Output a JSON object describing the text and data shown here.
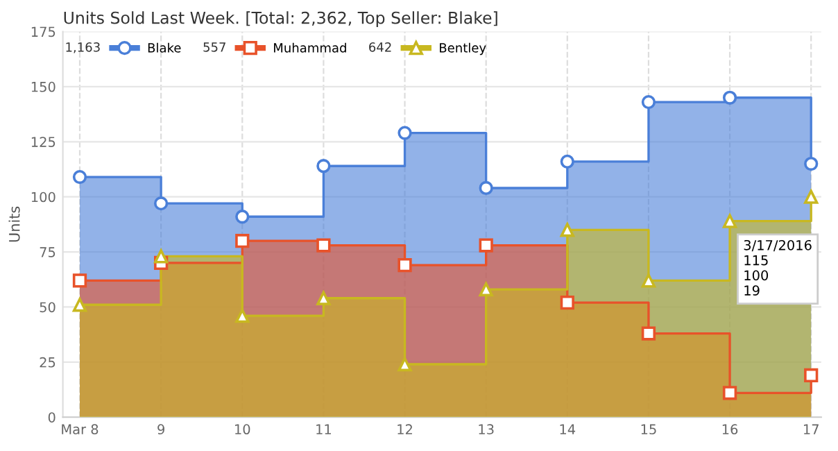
{
  "chart_data": {
    "type": "area",
    "title": "Units Sold Last Week. [Total: 2,362, Top Seller: Blake]",
    "ylabel": "Units",
    "x": [
      "2016-03-08",
      "2016-03-09",
      "2016-03-10",
      "2016-03-11",
      "2016-03-12",
      "2016-03-13",
      "2016-03-14",
      "2016-03-15",
      "2016-03-16",
      "2016-03-17"
    ],
    "series": [
      {
        "name": "Blake",
        "color": "#4a7fd8",
        "marker": "none",
        "x": [
          "2016-03-08",
          "2016-03-09",
          "2016-03-09",
          "2016-03-10",
          "2016-03-10",
          "2016-03-11",
          "2016-03-11",
          "2016-03-12",
          "2016-03-12",
          "2016-03-13",
          "2016-03-13",
          "2016-03-14",
          "2016-03-14",
          "2016-03-15",
          "2016-03-15",
          "2016-03-16",
          "2016-03-16",
          "2016-03-17",
          "2016-03-17"
        ],
        "values": [
          109,
          109,
          97,
          97,
          91,
          91,
          114,
          114,
          129,
          129,
          104,
          104,
          116,
          116,
          143,
          143,
          145,
          145,
          115
        ]
      },
      {
        "name": "Muhammad",
        "color": "#e8522a",
        "marker": "none",
        "x": [
          "2016-03-08",
          "2016-03-09",
          "2016-03-09",
          "2016-03-10",
          "2016-03-10",
          "2016-03-11",
          "2016-03-11",
          "2016-03-12",
          "2016-03-12",
          "2016-03-13",
          "2016-03-13",
          "2016-03-14",
          "2016-03-14",
          "2016-03-15",
          "2016-03-15",
          "2016-03-16",
          "2016-03-16",
          "2016-03-17",
          "2016-03-17"
        ],
        "values": [
          62,
          62,
          70,
          70,
          80,
          80,
          78,
          78,
          69,
          69,
          78,
          78,
          52,
          52,
          38,
          38,
          11,
          11,
          19
        ]
      },
      {
        "name": "Bentley",
        "color": "#c8b820",
        "marker": "none",
        "x": [
          "2016-03-08",
          "2016-03-09",
          "2016-03-09",
          "2016-03-10",
          "2016-03-10",
          "2016-03-11",
          "2016-03-11",
          "2016-03-12",
          "2016-03-12",
          "2016-03-13",
          "2016-03-13",
          "2016-03-14",
          "2016-03-14",
          "2016-03-15",
          "2016-03-15",
          "2016-03-16",
          "2016-03-16",
          "2016-03-17",
          "2016-03-17"
        ],
        "values": [
          51,
          51,
          73,
          73,
          46,
          46,
          54,
          54,
          24,
          24,
          58,
          58,
          85,
          85,
          62,
          62,
          89,
          89,
          100
        ]
      },
      {
        "type": "scatter",
        "color": "#4a7fd8",
        "marker": "circle",
        "values": [
          109,
          97,
          91,
          114,
          129,
          104,
          116,
          143,
          145,
          115
        ]
      },
      {
        "type": "scatter",
        "color": "#e8522a",
        "marker": "square",
        "values": [
          62,
          70,
          80,
          78,
          69,
          78,
          52,
          38,
          11,
          19
        ]
      },
      {
        "type": "scatter",
        "color": "#c8b820",
        "marker": "triangle",
        "values": [
          51,
          73,
          46,
          54,
          24,
          58,
          85,
          62,
          89,
          100
        ]
      }
    ],
    "annotations": [
      "1,163",
      "557",
      "642",
      "3/17/2016\n115\n100\n19"
    ],
    "xlim": [
      "2016-03-07T19:00",
      "2016-03-17T03:00"
    ],
    "xticks": [
      {
        "value": "2016-03-08",
        "label": "Mar 8"
      },
      {
        "value": "2016-03-09",
        "label": "9"
      },
      {
        "value": "2016-03-10",
        "label": "10"
      },
      {
        "value": "2016-03-11",
        "label": "11"
      },
      {
        "value": "2016-03-12",
        "label": "12"
      },
      {
        "value": "2016-03-13",
        "label": "13"
      },
      {
        "value": "2016-03-14",
        "label": "14"
      },
      {
        "value": "2016-03-15",
        "label": "15"
      },
      {
        "value": "2016-03-16",
        "label": "16"
      },
      {
        "value": "2016-03-17",
        "label": "17"
      }
    ],
    "ylim": [
      0,
      175
    ],
    "yticks": [
      0,
      25,
      50,
      75,
      100,
      125,
      150,
      175
    ],
    "grid": true,
    "legend": "top left",
    "line_style": "solid"
  }
}
